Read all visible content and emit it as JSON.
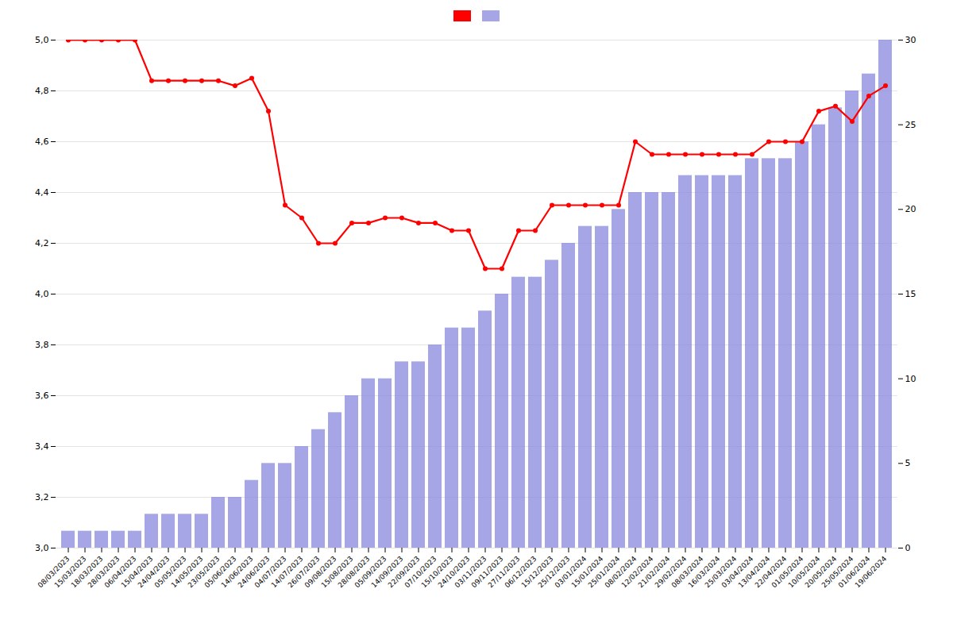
{
  "chart_data": {
    "type": "bar_line",
    "categories": [
      "08/03/2023",
      "15/03/2023",
      "18/03/2023",
      "28/03/2023",
      "06/04/2023",
      "15/04/2023",
      "24/04/2023",
      "05/05/2023",
      "14/05/2023",
      "23/05/2023",
      "05/06/2023",
      "14/06/2023",
      "24/06/2023",
      "04/07/2023",
      "14/07/2023",
      "26/07/2023",
      "09/08/2023",
      "15/08/2023",
      "28/08/2023",
      "05/09/2023",
      "14/09/2023",
      "22/09/2023",
      "07/10/2023",
      "15/10/2023",
      "24/10/2023",
      "03/11/2023",
      "09/11/2023",
      "27/11/2023",
      "06/12/2023",
      "15/12/2023",
      "25/12/2023",
      "03/01/2024",
      "15/01/2024",
      "25/01/2024",
      "08/02/2024",
      "12/02/2024",
      "21/02/2024",
      "29/02/2024",
      "08/03/2024",
      "16/03/2024",
      "25/03/2024",
      "03/04/2024",
      "13/04/2024",
      "22/04/2024",
      "01/05/2024",
      "10/05/2024",
      "20/05/2024",
      "25/05/2024",
      "01/06/2024",
      "19/06/2024"
    ],
    "series": [
      {
        "type": "bar",
        "color": "#8888dd",
        "axis": "y2",
        "values": [
          1,
          1,
          1,
          1,
          1,
          2,
          2,
          2,
          2,
          3,
          3,
          4,
          5,
          5,
          6,
          7,
          8,
          9,
          10,
          10,
          11,
          11,
          12,
          13,
          13,
          14,
          15,
          16,
          16,
          17,
          18,
          19,
          19,
          20,
          21,
          21,
          21,
          22,
          22,
          22,
          22,
          23,
          23,
          23,
          24,
          25,
          26,
          27,
          28,
          30
        ]
      },
      {
        "type": "line",
        "color": "#ff0000",
        "marker": "o",
        "values": [
          5.0,
          5.0,
          5.0,
          5.0,
          5.0,
          4.84,
          4.84,
          4.84,
          4.84,
          4.84,
          4.82,
          4.85,
          4.72,
          4.35,
          4.3,
          4.2,
          4.2,
          4.28,
          4.28,
          4.3,
          4.3,
          4.28,
          4.28,
          4.25,
          4.25,
          4.1,
          4.1,
          4.25,
          4.25,
          4.35,
          4.35,
          4.35,
          4.35,
          4.35,
          4.6,
          4.55,
          4.55,
          4.55,
          4.55,
          4.55,
          4.55,
          4.55,
          4.6,
          4.6,
          4.6,
          4.72,
          4.74,
          4.68,
          4.78,
          4.82
        ]
      }
    ],
    "ylim": [
      3.0,
      5.0
    ],
    "yticks": [
      {
        "value": 3.0,
        "label": "3,0"
      },
      {
        "value": 3.2,
        "label": "3,2"
      },
      {
        "value": 3.4,
        "label": "3,4"
      },
      {
        "value": 3.6,
        "label": "3,6"
      },
      {
        "value": 3.8,
        "label": "3,8"
      },
      {
        "value": 4.0,
        "label": "4,0"
      },
      {
        "value": 4.2,
        "label": "4,2"
      },
      {
        "value": 4.4,
        "label": "4,4"
      },
      {
        "value": 4.6,
        "label": "4,6"
      },
      {
        "value": 4.8,
        "label": "4,8"
      },
      {
        "value": 5.0,
        "label": "5,0"
      }
    ],
    "y2lim": [
      0,
      30
    ],
    "y2ticks": [
      0,
      5,
      10,
      15,
      20,
      25,
      30
    ],
    "grid": true,
    "legend": "upper center"
  }
}
